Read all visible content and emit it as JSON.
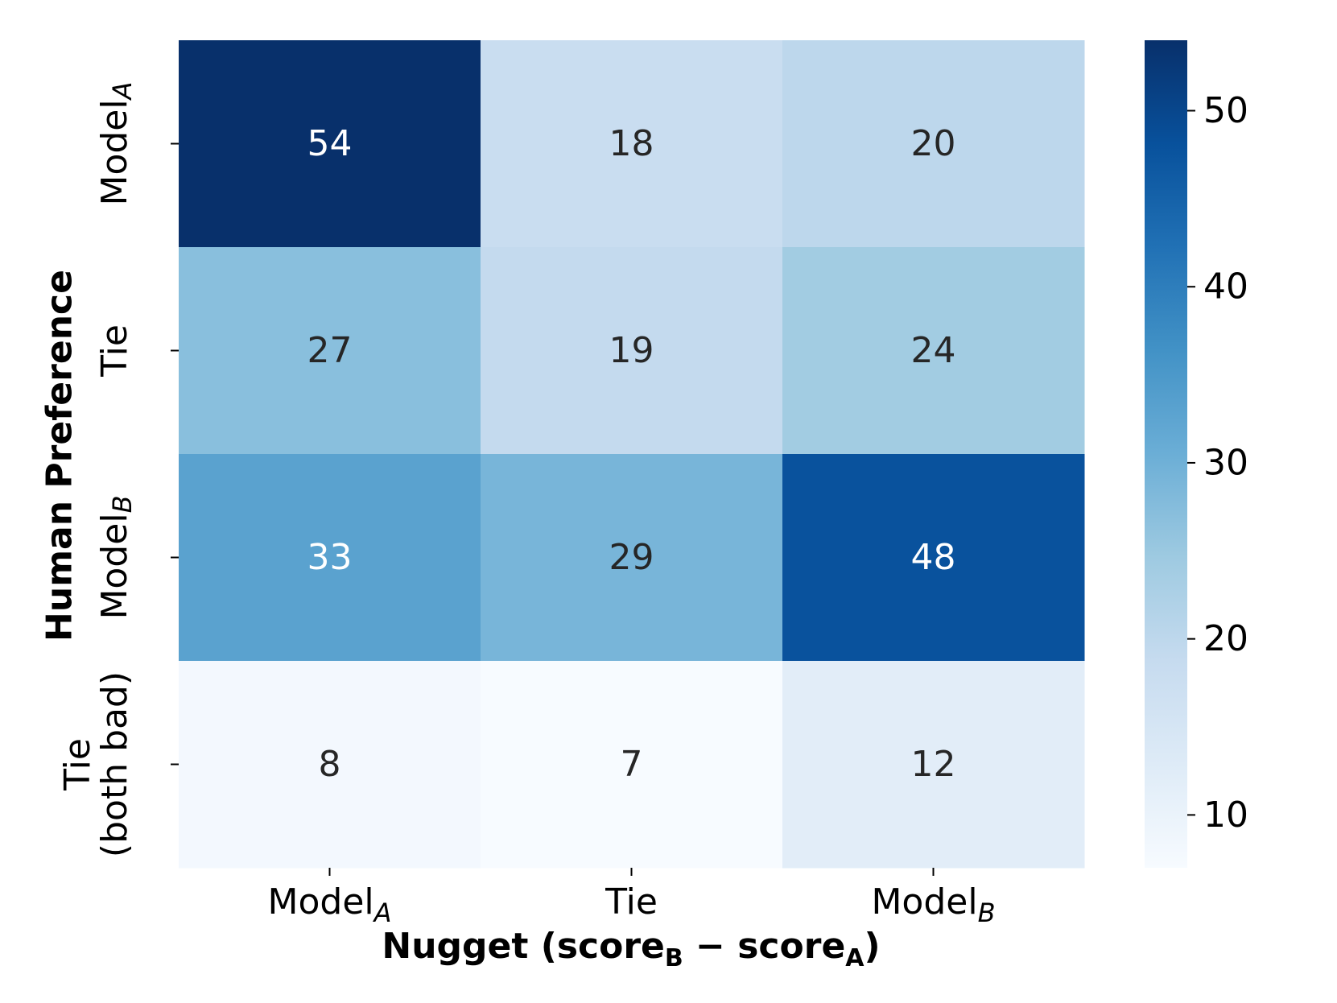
{
  "chart_data": {
    "type": "heatmap",
    "x_categories": [
      {
        "base": "Model",
        "sub": "A"
      },
      {
        "base": "Tie",
        "sub": ""
      },
      {
        "base": "Model",
        "sub": "B"
      }
    ],
    "y_categories": [
      {
        "lines": [
          "Model"
        ],
        "sub": "A"
      },
      {
        "lines": [
          "Tie"
        ],
        "sub": ""
      },
      {
        "lines": [
          "Model"
        ],
        "sub": "B"
      },
      {
        "lines": [
          "Tie",
          "(both bad)"
        ],
        "sub": ""
      }
    ],
    "values": [
      [
        54,
        18,
        20
      ],
      [
        27,
        19,
        24
      ],
      [
        33,
        29,
        48
      ],
      [
        8,
        7,
        12
      ]
    ],
    "xlabel": {
      "main": "Nugget (score",
      "sub1": "B",
      "mid": " − score",
      "sub2": "A",
      "end": ")"
    },
    "ylabel": "Human Preference",
    "colorbar": {
      "min": 7,
      "max": 54,
      "ticks": [
        10,
        20,
        30,
        40,
        50
      ]
    },
    "colormap": "Blues",
    "annotation_threshold": 30.5
  }
}
